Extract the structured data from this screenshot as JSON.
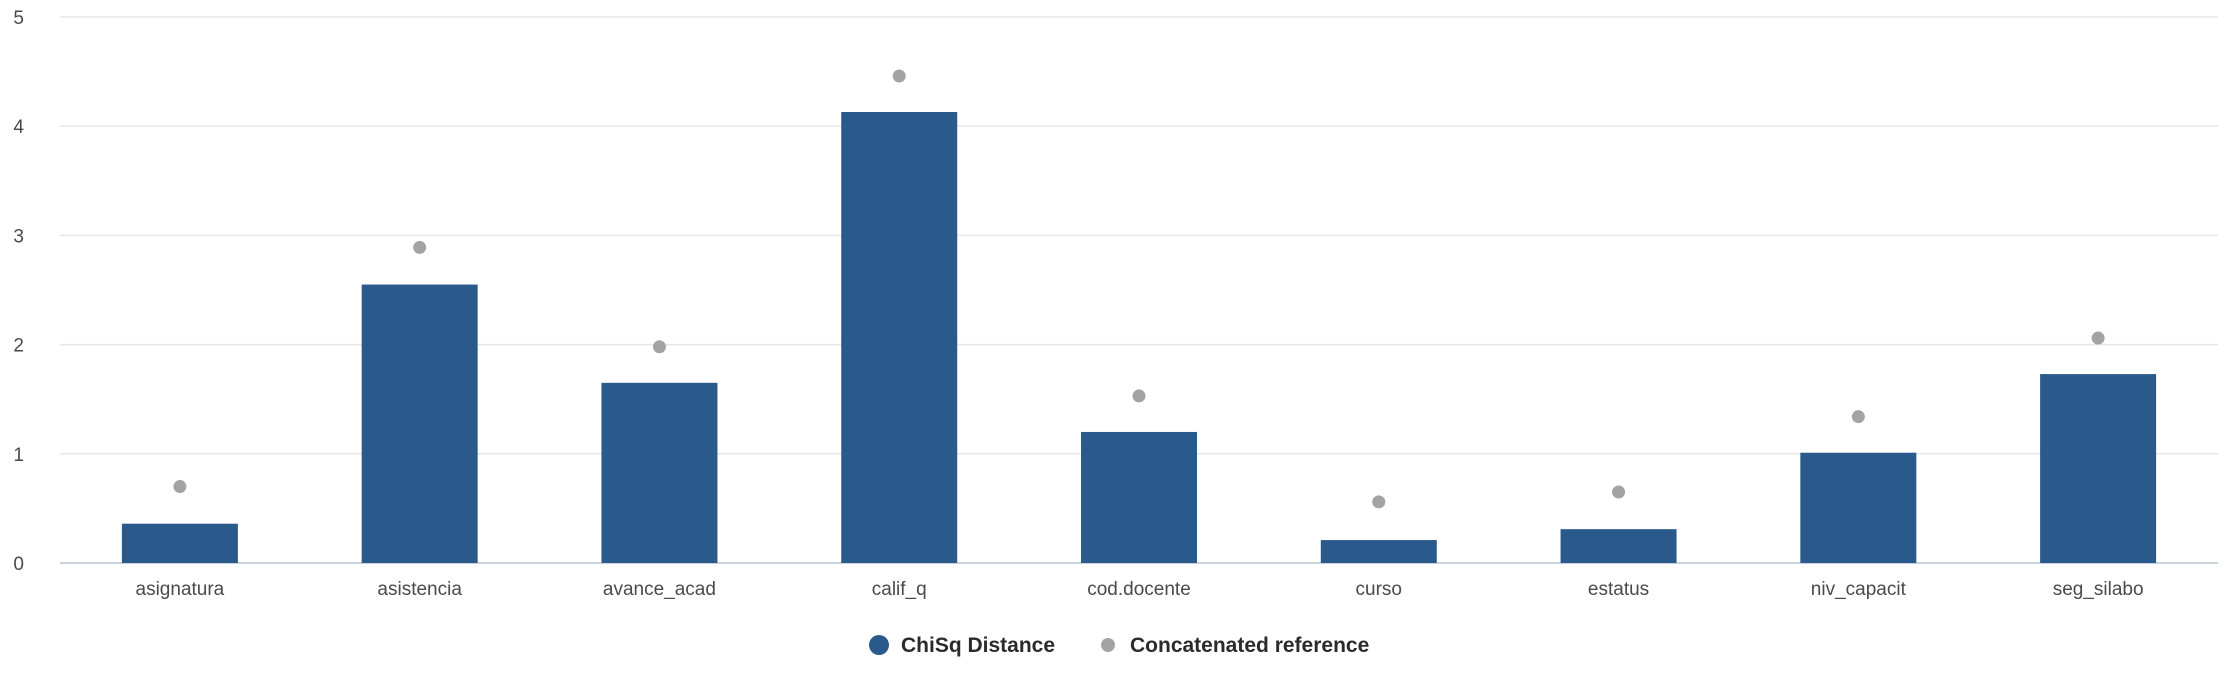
{
  "chart_data": {
    "type": "bar",
    "categories": [
      "asignatura",
      "asistencia",
      "avance_acad",
      "calif_q",
      "cod.docente",
      "curso",
      "estatus",
      "niv_capacit",
      "seg_silabo"
    ],
    "series": [
      {
        "name": "ChiSq Distance",
        "kind": "bar",
        "color": "#2a5a8c",
        "values": [
          0.36,
          2.55,
          1.65,
          4.13,
          1.2,
          0.21,
          0.31,
          1.01,
          1.73
        ]
      },
      {
        "name": "Concatenated reference",
        "kind": "scatter",
        "color": "#a3a3a3",
        "values": [
          0.7,
          2.89,
          1.98,
          4.46,
          1.53,
          0.56,
          0.65,
          1.34,
          2.06
        ]
      }
    ],
    "y_ticks": [
      "0",
      "1",
      "2",
      "3",
      "4",
      "5"
    ],
    "ylim": [
      0,
      5
    ],
    "grid": true,
    "legend_position": "bottom-center",
    "title": "",
    "xlabel": "",
    "ylabel": ""
  }
}
